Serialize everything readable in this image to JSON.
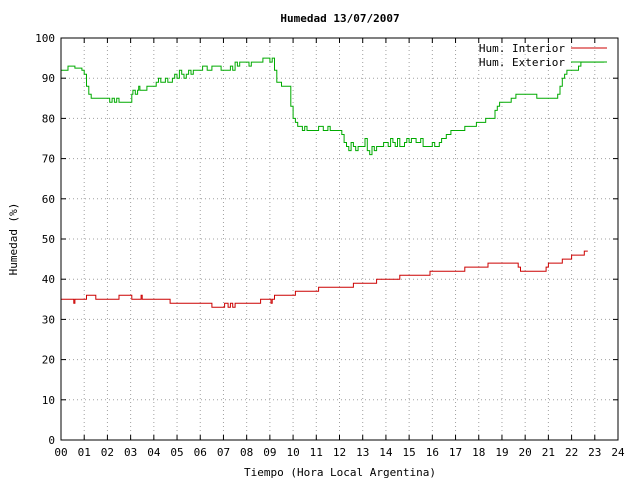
{
  "chart_data": {
    "type": "line",
    "title": "Humedad 13/07/2007",
    "xlabel": "Tiempo (Hora Local Argentina)",
    "ylabel": "Humedad (%)",
    "xlim": [
      0,
      24
    ],
    "ylim": [
      0,
      100
    ],
    "x_ticks": [
      "00",
      "01",
      "02",
      "03",
      "04",
      "05",
      "06",
      "07",
      "08",
      "09",
      "10",
      "11",
      "12",
      "13",
      "14",
      "15",
      "16",
      "17",
      "18",
      "19",
      "20",
      "21",
      "22",
      "23",
      "24"
    ],
    "y_ticks": [
      0,
      10,
      20,
      30,
      40,
      50,
      60,
      70,
      80,
      90,
      100
    ],
    "grid": true,
    "legend_position": "top-right",
    "series": [
      {
        "name": "Hum. Interior",
        "color": "#cc0000",
        "points": [
          [
            0.0,
            35
          ],
          [
            0.5,
            35
          ],
          [
            0.55,
            34
          ],
          [
            0.6,
            35
          ],
          [
            1.0,
            35
          ],
          [
            1.1,
            36
          ],
          [
            1.4,
            36
          ],
          [
            1.5,
            35
          ],
          [
            2.4,
            35
          ],
          [
            2.5,
            36
          ],
          [
            3.0,
            36
          ],
          [
            3.05,
            35
          ],
          [
            3.4,
            35
          ],
          [
            3.45,
            36
          ],
          [
            3.5,
            35
          ],
          [
            4.6,
            35
          ],
          [
            4.7,
            34
          ],
          [
            6.4,
            34
          ],
          [
            6.5,
            33
          ],
          [
            7.0,
            33
          ],
          [
            7.05,
            34
          ],
          [
            7.2,
            33
          ],
          [
            7.3,
            34
          ],
          [
            7.4,
            33
          ],
          [
            7.5,
            34
          ],
          [
            8.5,
            34
          ],
          [
            8.6,
            35
          ],
          [
            9.0,
            35
          ],
          [
            9.05,
            34
          ],
          [
            9.1,
            35
          ],
          [
            9.2,
            36
          ],
          [
            10.0,
            36
          ],
          [
            10.1,
            37
          ],
          [
            11.0,
            37
          ],
          [
            11.1,
            38
          ],
          [
            12.5,
            38
          ],
          [
            12.6,
            39
          ],
          [
            13.5,
            39
          ],
          [
            13.6,
            40
          ],
          [
            14.5,
            40
          ],
          [
            14.6,
            41
          ],
          [
            15.8,
            41
          ],
          [
            15.9,
            42
          ],
          [
            17.3,
            42
          ],
          [
            17.4,
            43
          ],
          [
            18.3,
            43
          ],
          [
            18.4,
            44
          ],
          [
            19.5,
            44
          ],
          [
            19.7,
            43
          ],
          [
            19.8,
            42
          ],
          [
            20.8,
            42
          ],
          [
            20.9,
            43
          ],
          [
            21.0,
            44
          ],
          [
            21.5,
            44
          ],
          [
            21.6,
            45
          ],
          [
            21.9,
            45
          ],
          [
            22.0,
            46
          ],
          [
            22.5,
            46
          ],
          [
            22.55,
            47
          ],
          [
            22.7,
            47
          ]
        ]
      },
      {
        "name": "Hum. Exterior",
        "color": "#00aa00",
        "points": [
          [
            0.0,
            92
          ],
          [
            0.2,
            92
          ],
          [
            0.3,
            93
          ],
          [
            0.5,
            93
          ],
          [
            0.6,
            92.5
          ],
          [
            0.9,
            92
          ],
          [
            1.0,
            91
          ],
          [
            1.1,
            88
          ],
          [
            1.2,
            86
          ],
          [
            1.3,
            85
          ],
          [
            2.0,
            85
          ],
          [
            2.1,
            84
          ],
          [
            2.2,
            85
          ],
          [
            2.3,
            84
          ],
          [
            2.4,
            85
          ],
          [
            2.5,
            84
          ],
          [
            3.0,
            84
          ],
          [
            3.05,
            86
          ],
          [
            3.1,
            87
          ],
          [
            3.2,
            86
          ],
          [
            3.3,
            87
          ],
          [
            3.35,
            88
          ],
          [
            3.4,
            87
          ],
          [
            3.6,
            87
          ],
          [
            3.7,
            88
          ],
          [
            4.0,
            88
          ],
          [
            4.1,
            89
          ],
          [
            4.2,
            90
          ],
          [
            4.3,
            89
          ],
          [
            4.5,
            90
          ],
          [
            4.6,
            89
          ],
          [
            4.8,
            90
          ],
          [
            4.9,
            91
          ],
          [
            5.0,
            90
          ],
          [
            5.1,
            92
          ],
          [
            5.2,
            91
          ],
          [
            5.3,
            90
          ],
          [
            5.4,
            91
          ],
          [
            5.5,
            92
          ],
          [
            5.6,
            91
          ],
          [
            5.7,
            92
          ],
          [
            6.0,
            92
          ],
          [
            6.1,
            93
          ],
          [
            6.3,
            92
          ],
          [
            6.5,
            93
          ],
          [
            6.8,
            93
          ],
          [
            6.9,
            92
          ],
          [
            7.2,
            92
          ],
          [
            7.3,
            93
          ],
          [
            7.4,
            92
          ],
          [
            7.5,
            94
          ],
          [
            7.6,
            93
          ],
          [
            7.7,
            94
          ],
          [
            8.0,
            94
          ],
          [
            8.1,
            93
          ],
          [
            8.2,
            94
          ],
          [
            8.6,
            94
          ],
          [
            8.7,
            95
          ],
          [
            8.9,
            95
          ],
          [
            9.0,
            94
          ],
          [
            9.1,
            95
          ],
          [
            9.2,
            92
          ],
          [
            9.3,
            89
          ],
          [
            9.5,
            88
          ],
          [
            9.8,
            88
          ],
          [
            9.9,
            83
          ],
          [
            10.0,
            80
          ],
          [
            10.1,
            79
          ],
          [
            10.2,
            78
          ],
          [
            10.4,
            77
          ],
          [
            10.5,
            78
          ],
          [
            10.6,
            77
          ],
          [
            11.0,
            77
          ],
          [
            11.1,
            78
          ],
          [
            11.3,
            77
          ],
          [
            11.5,
            78
          ],
          [
            11.6,
            77
          ],
          [
            12.0,
            77
          ],
          [
            12.1,
            76
          ],
          [
            12.2,
            74
          ],
          [
            12.3,
            73
          ],
          [
            12.4,
            72
          ],
          [
            12.5,
            74
          ],
          [
            12.6,
            73
          ],
          [
            12.7,
            72
          ],
          [
            12.8,
            73
          ],
          [
            13.0,
            73
          ],
          [
            13.1,
            75
          ],
          [
            13.2,
            72
          ],
          [
            13.3,
            71
          ],
          [
            13.4,
            73
          ],
          [
            13.5,
            72
          ],
          [
            13.6,
            73
          ],
          [
            13.8,
            73
          ],
          [
            13.9,
            74
          ],
          [
            14.1,
            73
          ],
          [
            14.2,
            75
          ],
          [
            14.3,
            74
          ],
          [
            14.4,
            73
          ],
          [
            14.5,
            75
          ],
          [
            14.6,
            73
          ],
          [
            14.8,
            74
          ],
          [
            14.9,
            75
          ],
          [
            15.0,
            74
          ],
          [
            15.1,
            75
          ],
          [
            15.3,
            74
          ],
          [
            15.5,
            75
          ],
          [
            15.6,
            73
          ],
          [
            16.0,
            74
          ],
          [
            16.1,
            73
          ],
          [
            16.3,
            74
          ],
          [
            16.4,
            75
          ],
          [
            16.5,
            75
          ],
          [
            16.6,
            76
          ],
          [
            16.8,
            77
          ],
          [
            17.3,
            77
          ],
          [
            17.4,
            78
          ],
          [
            17.8,
            78
          ],
          [
            17.9,
            79
          ],
          [
            18.2,
            79
          ],
          [
            18.3,
            80
          ],
          [
            18.6,
            80
          ],
          [
            18.7,
            82
          ],
          [
            18.8,
            83
          ],
          [
            18.9,
            84
          ],
          [
            19.3,
            84
          ],
          [
            19.4,
            85
          ],
          [
            19.6,
            86
          ],
          [
            20.4,
            86
          ],
          [
            20.5,
            85
          ],
          [
            21.3,
            85
          ],
          [
            21.4,
            86
          ],
          [
            21.5,
            88
          ],
          [
            21.6,
            90
          ],
          [
            21.7,
            91
          ],
          [
            21.8,
            92
          ],
          [
            22.2,
            92
          ],
          [
            22.3,
            93
          ],
          [
            22.4,
            94
          ],
          [
            23.4,
            94
          ]
        ]
      }
    ]
  }
}
